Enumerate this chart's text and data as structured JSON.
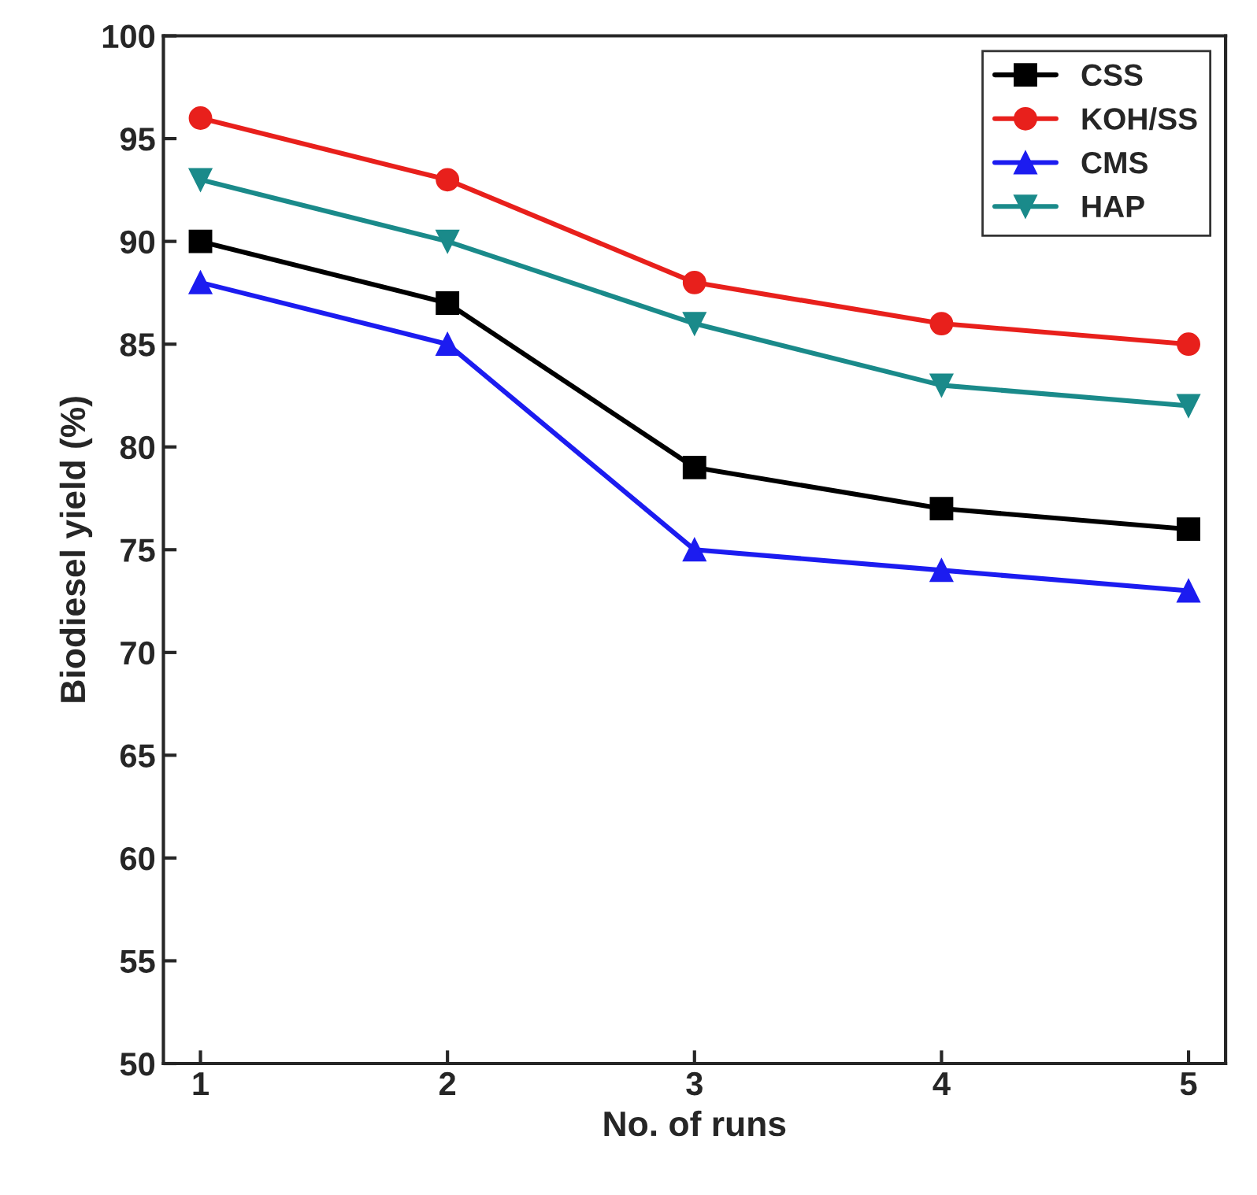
{
  "chart_data": {
    "type": "line",
    "xlabel": "No. of runs",
    "ylabel": "Biodiesel yield (%)",
    "x": [
      1,
      2,
      3,
      4,
      5
    ],
    "series": [
      {
        "name": "CSS",
        "color": "#000000",
        "marker": "square",
        "values": [
          90,
          87,
          79,
          77,
          76
        ]
      },
      {
        "name": "KOH/SS",
        "color": "#e8201c",
        "marker": "circle",
        "values": [
          96,
          93,
          88,
          86,
          85
        ]
      },
      {
        "name": "CMS",
        "color": "#1c1cf0",
        "marker": "triangle",
        "values": [
          88,
          85,
          75,
          74,
          73
        ]
      },
      {
        "name": "HAP",
        "color": "#1a8a8a",
        "marker": "triangle-down",
        "values": [
          93,
          90,
          86,
          83,
          82
        ]
      }
    ],
    "xlim": [
      0.85,
      5.15
    ],
    "xticks": [
      1,
      2,
      3,
      4,
      5
    ],
    "ylim": [
      50,
      100
    ],
    "yticks": [
      50,
      55,
      60,
      65,
      70,
      75,
      80,
      85,
      90,
      95,
      100
    ],
    "grid": false,
    "legend": "top right",
    "line_style": "solid"
  }
}
